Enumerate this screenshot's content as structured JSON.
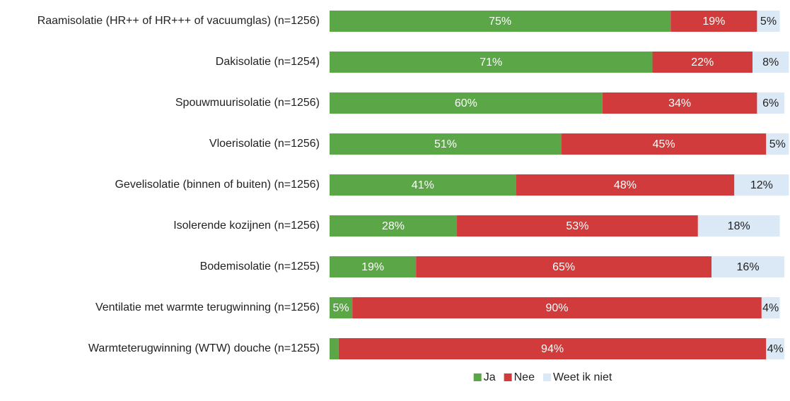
{
  "chart_data": {
    "type": "stacked-bar-horizontal",
    "categories": [
      "Raamisolatie (HR++ of HR+++ of vacuumglas) (n=1256)",
      "Dakisolatie (n=1254)",
      "Spouwmuurisolatie (n=1256)",
      "Vloerisolatie (n=1256)",
      "Gevelisolatie (binnen of buiten) (n=1256)",
      "Isolerende kozijnen (n=1256)",
      "Bodemisolatie (n=1255)",
      "Ventilatie met warmte terugwinning (n=1256)",
      "Warmteterugwinning (WTW) douche (n=1255)"
    ],
    "series": [
      {
        "name": "Ja",
        "color": "#5ba647",
        "label_color": "#ffffff",
        "values": [
          75,
          71,
          60,
          51,
          41,
          28,
          19,
          5,
          2
        ],
        "value_labels": [
          "75%",
          "71%",
          "60%",
          "51%",
          "41%",
          "28%",
          "19%",
          "5%",
          null
        ]
      },
      {
        "name": "Nee",
        "color": "#d13b3b",
        "label_color": "#ffffff",
        "values": [
          19,
          22,
          34,
          45,
          48,
          53,
          65,
          90,
          94
        ],
        "value_labels": [
          "19%",
          "22%",
          "34%",
          "45%",
          "48%",
          "53%",
          "65%",
          "90%",
          "94%"
        ]
      },
      {
        "name": "Weet ik niet",
        "color": "#dbe9f7",
        "label_color": "#222222",
        "values": [
          5,
          8,
          6,
          5,
          12,
          18,
          16,
          4,
          4
        ],
        "value_labels": [
          "5%",
          "8%",
          "6%",
          "5%",
          "12%",
          "18%",
          "16%",
          "4%",
          "4%"
        ]
      }
    ],
    "xlim": [
      0,
      100
    ],
    "legend": "bottom"
  }
}
